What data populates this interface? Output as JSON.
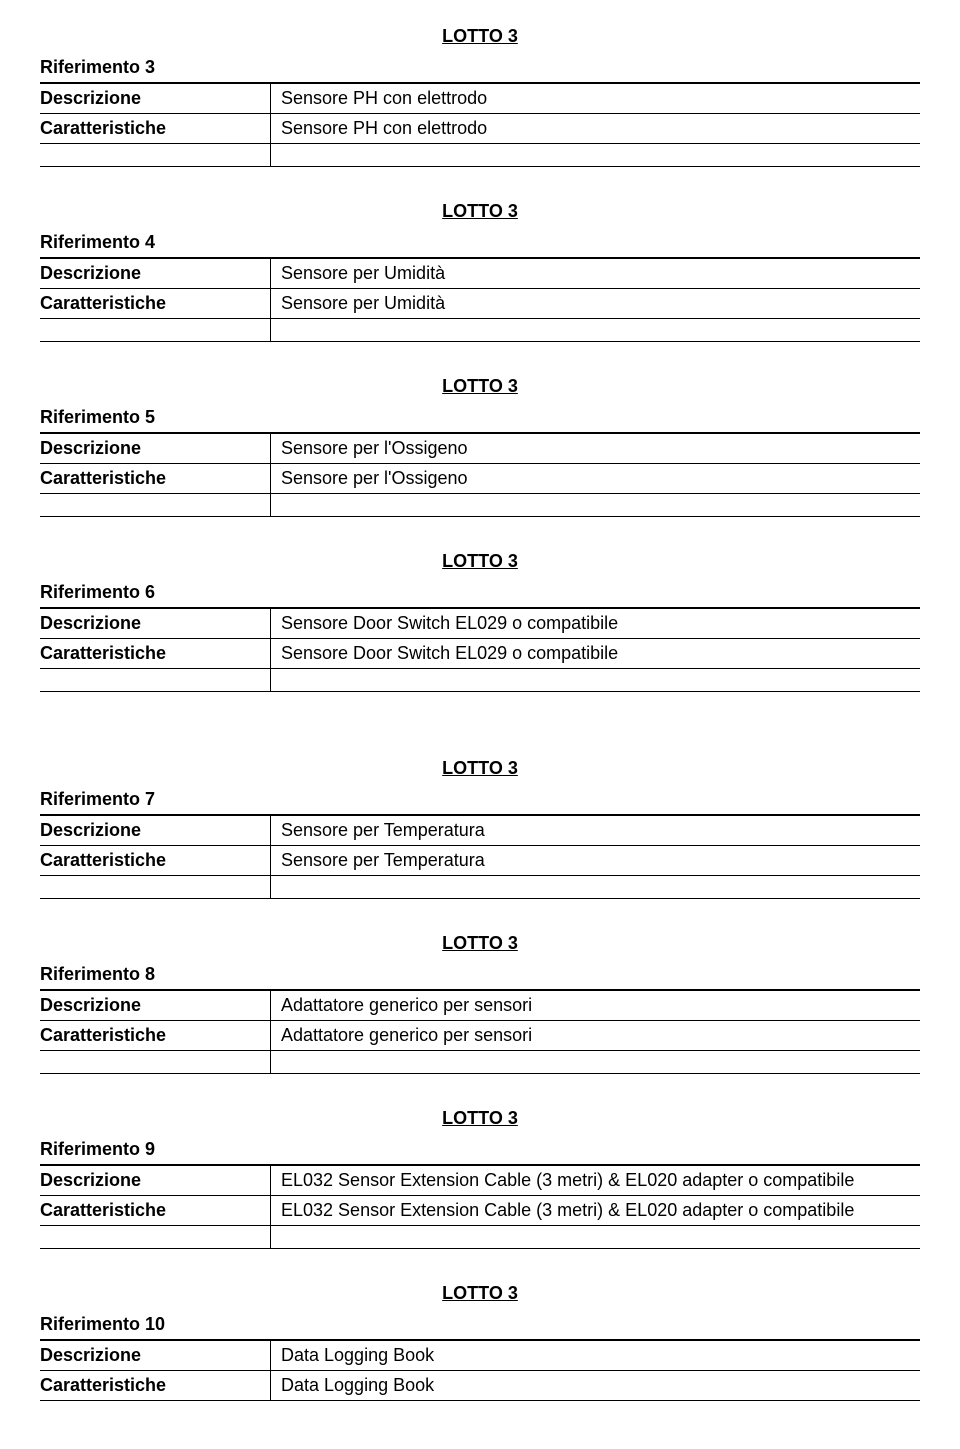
{
  "sections": [
    {
      "lotto": "LOTTO 3",
      "riferimento": "Riferimento 3",
      "descrizione_label": "Descrizione",
      "descrizione_value": "Sensore PH con elettrodo",
      "caratteristiche_label": "Caratteristiche",
      "caratteristiche_value": "Sensore PH con elettrodo"
    },
    {
      "lotto": "LOTTO 3",
      "riferimento": "Riferimento 4",
      "descrizione_label": "Descrizione",
      "descrizione_value": "Sensore per Umidità",
      "caratteristiche_label": "Caratteristiche",
      "caratteristiche_value": "Sensore per Umidità"
    },
    {
      "lotto": "LOTTO 3",
      "riferimento": "Riferimento 5",
      "descrizione_label": "Descrizione",
      "descrizione_value": "Sensore per l'Ossigeno",
      "caratteristiche_label": "Caratteristiche",
      "caratteristiche_value": "Sensore per l'Ossigeno"
    },
    {
      "lotto": "LOTTO 3",
      "riferimento": "Riferimento 6",
      "descrizione_label": "Descrizione",
      "descrizione_value": "Sensore Door Switch EL029 o compatibile",
      "caratteristiche_label": "Caratteristiche",
      "caratteristiche_value": "Sensore Door Switch EL029 o compatibile"
    },
    {
      "lotto": "LOTTO 3",
      "riferimento": "Riferimento 7",
      "descrizione_label": "Descrizione",
      "descrizione_value": "Sensore per Temperatura",
      "caratteristiche_label": "Caratteristiche",
      "caratteristiche_value": "Sensore per Temperatura"
    },
    {
      "lotto": "LOTTO 3",
      "riferimento": "Riferimento 8",
      "descrizione_label": "Descrizione",
      "descrizione_value": "Adattatore generico per sensori",
      "caratteristiche_label": "Caratteristiche",
      "caratteristiche_value": "Adattatore generico per sensori"
    },
    {
      "lotto": "LOTTO 3",
      "riferimento": "Riferimento 9",
      "descrizione_label": "Descrizione",
      "descrizione_value": "EL032 Sensor Extension Cable (3 metri) & EL020 adapter o compatibile",
      "caratteristiche_label": "Caratteristiche",
      "caratteristiche_value": "EL032 Sensor Extension Cable (3 metri) & EL020 adapter o compatibile"
    },
    {
      "lotto": "LOTTO 3",
      "riferimento": "Riferimento 10",
      "descrizione_label": "Descrizione",
      "descrizione_value": "Data Logging Book",
      "caratteristiche_label": "Caratteristiche",
      "caratteristiche_value": "Data Logging Book"
    }
  ]
}
